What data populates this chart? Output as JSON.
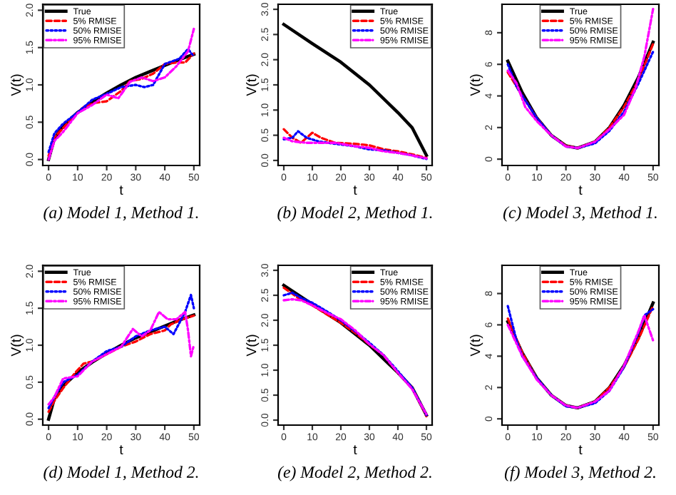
{
  "chart_data": [
    {
      "type": "line",
      "title": "(a) Model 1, Method 1.",
      "xlabel": "t",
      "ylabel": "V(t)",
      "xlim": [
        -2,
        52
      ],
      "ylim": [
        -0.08,
        2.08
      ],
      "xticks": [
        0,
        10,
        20,
        30,
        40,
        50
      ],
      "yticks": [
        {
          "value": 0,
          "label": "0.0"
        },
        0.5,
        {
          "value": 1,
          "label": "1.0"
        },
        1.5,
        {
          "value": 2,
          "label": "2.0"
        }
      ],
      "legend": "top left",
      "grid": false,
      "series": [
        {
          "name": "True",
          "color": "#000000",
          "line_style": "solid",
          "x": [
            0,
            2,
            5,
            10,
            15,
            20,
            25,
            30,
            35,
            40,
            45,
            50
          ],
          "values": [
            0.0,
            0.28,
            0.45,
            0.63,
            0.77,
            0.89,
            1.0,
            1.1,
            1.18,
            1.26,
            1.34,
            1.41
          ]
        },
        {
          "name": "5% RMISE",
          "color": "#ff0000",
          "line_style": "dashed",
          "x": [
            0,
            2,
            5,
            8,
            12,
            16,
            20,
            25,
            28,
            32,
            36,
            40,
            44,
            47,
            50
          ],
          "values": [
            0.05,
            0.3,
            0.42,
            0.55,
            0.7,
            0.76,
            0.78,
            0.92,
            1.05,
            1.08,
            1.15,
            1.28,
            1.3,
            1.3,
            1.42
          ]
        },
        {
          "name": "50% RMISE",
          "color": "#0000ff",
          "line_style": "dotted",
          "x": [
            0,
            2,
            5,
            10,
            15,
            20,
            25,
            30,
            33,
            36,
            40,
            45,
            48,
            50
          ],
          "values": [
            0.1,
            0.35,
            0.48,
            0.63,
            0.8,
            0.88,
            0.97,
            1.0,
            0.97,
            1.0,
            1.28,
            1.35,
            1.48,
            1.38
          ]
        },
        {
          "name": "95% RMISE",
          "color": "#ff00ff",
          "line_style": "dashdot",
          "x": [
            0,
            2,
            5,
            10,
            15,
            20,
            24,
            28,
            32,
            36,
            40,
            44,
            46,
            48,
            50
          ],
          "values": [
            0.0,
            0.25,
            0.37,
            0.62,
            0.73,
            0.87,
            0.82,
            1.04,
            1.1,
            1.05,
            1.1,
            1.25,
            1.35,
            1.45,
            1.75
          ]
        }
      ]
    },
    {
      "type": "line",
      "title": "(b) Model 2, Method 1.",
      "xlabel": "t",
      "ylabel": "V(t)",
      "xlim": [
        -2,
        52
      ],
      "ylim": [
        -0.1,
        3.1
      ],
      "xticks": [
        0,
        10,
        20,
        30,
        40,
        50
      ],
      "yticks": [
        {
          "value": 0,
          "label": "0.0"
        },
        0.5,
        {
          "value": 1,
          "label": "1.0"
        },
        1.5,
        {
          "value": 2,
          "label": "2.0"
        },
        2.5,
        {
          "value": 3,
          "label": "3.0"
        }
      ],
      "legend": "top right",
      "grid": false,
      "series": [
        {
          "name": "True",
          "color": "#000000",
          "line_style": "solid",
          "x": [
            0,
            10,
            20,
            30,
            40,
            45,
            50
          ],
          "values": [
            2.7,
            2.32,
            1.95,
            1.5,
            0.95,
            0.65,
            0.1
          ]
        },
        {
          "name": "5% RMISE",
          "color": "#ff0000",
          "line_style": "dashed",
          "x": [
            0,
            3,
            6,
            10,
            13,
            18,
            25,
            30,
            35,
            40,
            45,
            50
          ],
          "values": [
            0.62,
            0.45,
            0.35,
            0.55,
            0.45,
            0.35,
            0.33,
            0.3,
            0.22,
            0.18,
            0.12,
            0.05
          ]
        },
        {
          "name": "50% RMISE",
          "color": "#0000ff",
          "line_style": "dotted",
          "x": [
            0,
            3,
            5,
            8,
            12,
            18,
            25,
            30,
            35,
            40,
            45,
            50
          ],
          "values": [
            0.42,
            0.45,
            0.58,
            0.45,
            0.38,
            0.33,
            0.28,
            0.22,
            0.2,
            0.15,
            0.1,
            0.03
          ]
        },
        {
          "name": "95% RMISE",
          "color": "#ff00ff",
          "line_style": "dashdot",
          "x": [
            0,
            3,
            8,
            12,
            18,
            25,
            30,
            35,
            40,
            45,
            50
          ],
          "values": [
            0.45,
            0.38,
            0.35,
            0.35,
            0.35,
            0.28,
            0.25,
            0.18,
            0.15,
            0.1,
            0.04
          ]
        }
      ]
    },
    {
      "type": "line",
      "title": "(c) Model 3, Method 1.",
      "xlabel": "t",
      "ylabel": "V(t)",
      "xlim": [
        -2,
        52
      ],
      "ylim": [
        -0.4,
        9.8
      ],
      "xticks": [
        0,
        10,
        20,
        30,
        40,
        50
      ],
      "yticks": [
        0,
        2,
        4,
        6,
        8
      ],
      "legend": "top",
      "grid": false,
      "series": [
        {
          "name": "True",
          "color": "#000000",
          "line_style": "solid",
          "x": [
            0,
            5,
            10,
            15,
            20,
            24,
            30,
            35,
            40,
            45,
            50
          ],
          "values": [
            6.2,
            4.2,
            2.6,
            1.5,
            0.85,
            0.7,
            1.1,
            2.0,
            3.4,
            5.2,
            7.4
          ]
        },
        {
          "name": "5% RMISE",
          "color": "#ff0000",
          "line_style": "dashed",
          "x": [
            0,
            5,
            10,
            15,
            20,
            24,
            30,
            35,
            40,
            45,
            50
          ],
          "values": [
            5.5,
            4.0,
            2.6,
            1.5,
            0.85,
            0.7,
            1.1,
            2.0,
            3.3,
            5.0,
            7.3
          ]
        },
        {
          "name": "50% RMISE",
          "color": "#0000ff",
          "line_style": "dotted",
          "x": [
            0,
            3,
            5,
            10,
            15,
            20,
            24,
            30,
            35,
            40,
            45,
            50
          ],
          "values": [
            6.0,
            4.6,
            4.0,
            2.6,
            1.5,
            0.8,
            0.7,
            1.0,
            1.8,
            3.0,
            4.8,
            6.8
          ]
        },
        {
          "name": "95% RMISE",
          "color": "#ff00ff",
          "line_style": "dashdot",
          "x": [
            0,
            3,
            6,
            10,
            15,
            20,
            24,
            30,
            35,
            40,
            44,
            47,
            50
          ],
          "values": [
            5.6,
            4.8,
            3.3,
            2.4,
            1.5,
            0.8,
            0.7,
            1.1,
            1.9,
            2.8,
            4.5,
            6.5,
            9.5
          ]
        }
      ]
    },
    {
      "type": "line",
      "title": "(d) Model 1, Method 2.",
      "xlabel": "t",
      "ylabel": "V(t)",
      "xlim": [
        -2,
        52
      ],
      "ylim": [
        -0.08,
        2.08
      ],
      "xticks": [
        0,
        10,
        20,
        30,
        40,
        50
      ],
      "yticks": [
        {
          "value": 0,
          "label": "0.0"
        },
        0.5,
        {
          "value": 1,
          "label": "1.0"
        },
        1.5,
        {
          "value": 2,
          "label": "2.0"
        }
      ],
      "legend": "top left",
      "grid": false,
      "series": [
        {
          "name": "True",
          "color": "#000000",
          "line_style": "solid",
          "x": [
            0,
            2,
            5,
            10,
            15,
            20,
            25,
            30,
            35,
            40,
            45,
            50
          ],
          "values": [
            0.0,
            0.28,
            0.45,
            0.63,
            0.77,
            0.89,
            1.0,
            1.1,
            1.18,
            1.26,
            1.34,
            1.41
          ]
        },
        {
          "name": "5% RMISE",
          "color": "#ff0000",
          "line_style": "dashed",
          "x": [
            0,
            2,
            5,
            9,
            12,
            15,
            20,
            25,
            30,
            35,
            40,
            42,
            46,
            50
          ],
          "values": [
            0.1,
            0.25,
            0.42,
            0.62,
            0.75,
            0.78,
            0.88,
            0.98,
            1.05,
            1.15,
            1.2,
            1.28,
            1.35,
            1.4
          ]
        },
        {
          "name": "50% RMISE",
          "color": "#0000ff",
          "line_style": "dotted",
          "x": [
            0,
            2,
            5,
            10,
            15,
            20,
            25,
            30,
            35,
            40,
            43,
            45,
            47,
            49,
            50
          ],
          "values": [
            0.15,
            0.3,
            0.5,
            0.6,
            0.78,
            0.92,
            0.98,
            1.12,
            1.2,
            1.25,
            1.15,
            1.3,
            1.45,
            1.68,
            1.5
          ]
        },
        {
          "name": "95% RMISE",
          "color": "#ff00ff",
          "line_style": "dashdot",
          "x": [
            0,
            2,
            5,
            10,
            15,
            20,
            25,
            29,
            32,
            35,
            38,
            41,
            44,
            47,
            48,
            49,
            50
          ],
          "values": [
            0.2,
            0.3,
            0.55,
            0.58,
            0.78,
            0.88,
            0.98,
            1.22,
            1.12,
            1.2,
            1.45,
            1.35,
            1.35,
            1.45,
            1.2,
            0.85,
            1.0
          ]
        }
      ]
    },
    {
      "type": "line",
      "title": "(e) Model 2, Method 2.",
      "xlabel": "t",
      "ylabel": "V(t)",
      "xlim": [
        -2,
        52
      ],
      "ylim": [
        -0.1,
        3.1
      ],
      "xticks": [
        0,
        10,
        20,
        30,
        40,
        50
      ],
      "yticks": [
        {
          "value": 0,
          "label": "0.0"
        },
        0.5,
        {
          "value": 1,
          "label": "1.0"
        },
        1.5,
        {
          "value": 2,
          "label": "2.0"
        },
        2.5,
        {
          "value": 3,
          "label": "3.0"
        }
      ],
      "legend": "top right",
      "grid": false,
      "series": [
        {
          "name": "True",
          "color": "#000000",
          "line_style": "solid",
          "x": [
            0,
            10,
            20,
            30,
            40,
            45,
            50
          ],
          "values": [
            2.7,
            2.32,
            1.95,
            1.5,
            0.95,
            0.65,
            0.1
          ]
        },
        {
          "name": "5% RMISE",
          "color": "#ff0000",
          "line_style": "dashed",
          "x": [
            0,
            5,
            10,
            15,
            20,
            25,
            30,
            35,
            40,
            45,
            50
          ],
          "values": [
            2.65,
            2.45,
            2.3,
            2.12,
            1.95,
            1.75,
            1.52,
            1.3,
            0.95,
            0.65,
            0.08
          ]
        },
        {
          "name": "50% RMISE",
          "color": "#0000ff",
          "line_style": "dotted",
          "x": [
            0,
            3,
            6,
            10,
            15,
            20,
            25,
            30,
            35,
            40,
            45,
            50
          ],
          "values": [
            2.5,
            2.55,
            2.45,
            2.35,
            2.18,
            2.0,
            1.78,
            1.55,
            1.3,
            0.98,
            0.65,
            0.1
          ]
        },
        {
          "name": "95% RMISE",
          "color": "#ff00ff",
          "line_style": "dashdot",
          "x": [
            0,
            3,
            6,
            10,
            15,
            20,
            25,
            30,
            35,
            40,
            45,
            50
          ],
          "values": [
            2.4,
            2.42,
            2.4,
            2.3,
            2.15,
            2.02,
            1.8,
            1.52,
            1.3,
            0.95,
            0.62,
            0.12
          ]
        }
      ]
    },
    {
      "type": "line",
      "title": "(f) Model 3, Method 2.",
      "xlabel": "t",
      "ylabel": "V(t)",
      "xlim": [
        -2,
        52
      ],
      "ylim": [
        -0.4,
        9.8
      ],
      "xticks": [
        0,
        10,
        20,
        30,
        40,
        50
      ],
      "yticks": [
        0,
        2,
        4,
        6,
        8
      ],
      "legend": "top",
      "grid": false,
      "series": [
        {
          "name": "True",
          "color": "#000000",
          "line_style": "solid",
          "x": [
            0,
            5,
            10,
            15,
            20,
            24,
            30,
            35,
            40,
            45,
            50
          ],
          "values": [
            6.2,
            4.2,
            2.6,
            1.5,
            0.85,
            0.7,
            1.1,
            2.0,
            3.4,
            5.2,
            7.4
          ]
        },
        {
          "name": "5% RMISE",
          "color": "#ff0000",
          "line_style": "dashed",
          "x": [
            0,
            5,
            10,
            15,
            20,
            24,
            30,
            35,
            40,
            45,
            50
          ],
          "values": [
            6.4,
            4.2,
            2.6,
            1.5,
            0.85,
            0.7,
            1.1,
            2.0,
            3.3,
            5.1,
            7.2
          ]
        },
        {
          "name": "50% RMISE",
          "color": "#0000ff",
          "line_style": "dotted",
          "x": [
            0,
            3,
            5,
            10,
            15,
            20,
            24,
            30,
            35,
            40,
            45,
            47,
            50
          ],
          "values": [
            7.2,
            5.0,
            4.0,
            2.6,
            1.5,
            0.8,
            0.7,
            1.0,
            1.8,
            3.3,
            5.5,
            6.6,
            7.0
          ]
        },
        {
          "name": "95% RMISE",
          "color": "#ff00ff",
          "line_style": "dashdot",
          "x": [
            0,
            5,
            10,
            15,
            20,
            24,
            30,
            35,
            40,
            45,
            47,
            50
          ],
          "values": [
            6.0,
            4.0,
            2.5,
            1.5,
            0.85,
            0.7,
            1.1,
            1.8,
            3.4,
            5.6,
            6.6,
            5.0
          ]
        }
      ]
    }
  ]
}
